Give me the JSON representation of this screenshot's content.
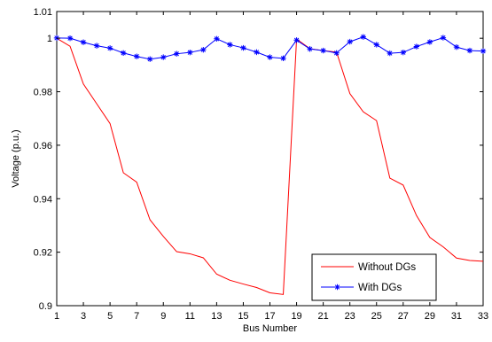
{
  "chart_data": {
    "type": "line",
    "title": "",
    "xlabel": "Bus Number",
    "ylabel": "Voltage (p.u.)",
    "xlim": [
      1,
      33
    ],
    "ylim": [
      0.9,
      1.01
    ],
    "x_ticks": [
      1,
      3,
      5,
      7,
      9,
      11,
      13,
      15,
      17,
      19,
      21,
      23,
      25,
      27,
      29,
      31,
      33
    ],
    "x_tick_labels": [
      "1",
      "3",
      "5",
      "7",
      "9",
      "11",
      "13",
      "15",
      "17",
      "19",
      "21",
      "23",
      "25",
      "27",
      "29",
      "31",
      "33"
    ],
    "y_ticks": [
      0.9,
      0.92,
      0.94,
      0.96,
      0.98,
      1.0,
      1.01
    ],
    "y_tick_labels": [
      "0.9",
      "0.92",
      "0.94",
      "0.96",
      "0.98",
      "1",
      "1.01"
    ],
    "grid": false,
    "legend_position": "bottom-right",
    "x": [
      1,
      2,
      3,
      4,
      5,
      6,
      7,
      8,
      9,
      10,
      11,
      12,
      13,
      14,
      15,
      16,
      17,
      18,
      19,
      20,
      21,
      22,
      23,
      24,
      25,
      26,
      27,
      28,
      29,
      30,
      31,
      32,
      33
    ],
    "series": [
      {
        "name": "Without DGs",
        "color": "#ff0000",
        "marker": "none",
        "values": [
          1.0,
          0.997,
          0.9829,
          0.9755,
          0.9681,
          0.9497,
          0.9462,
          0.9321,
          0.9259,
          0.9202,
          0.9194,
          0.9179,
          0.9118,
          0.9095,
          0.9081,
          0.9068,
          0.9048,
          0.9042,
          0.9997,
          0.9961,
          0.9954,
          0.9948,
          0.9793,
          0.9725,
          0.9692,
          0.9477,
          0.9451,
          0.9337,
          0.9255,
          0.922,
          0.9178,
          0.9169,
          0.9166
        ]
      },
      {
        "name": "With DGs",
        "color": "#0000ff",
        "marker": "star",
        "values": [
          1.0001,
          1.0,
          0.9985,
          0.9972,
          0.9963,
          0.9945,
          0.9932,
          0.9922,
          0.9929,
          0.9942,
          0.9947,
          0.9957,
          0.9998,
          0.9976,
          0.9964,
          0.9948,
          0.9929,
          0.9925,
          0.9993,
          0.996,
          0.9954,
          0.9945,
          0.9987,
          1.0005,
          0.9976,
          0.9944,
          0.9947,
          0.9969,
          0.9986,
          1.0002,
          0.9967,
          0.9954,
          0.9952
        ]
      }
    ]
  }
}
